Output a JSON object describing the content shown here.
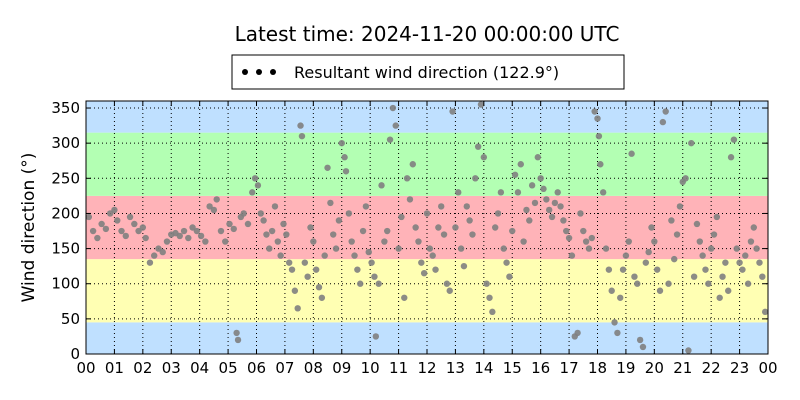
{
  "chart_data": {
    "type": "scatter",
    "title": "Latest time: 2024-11-20 00:00:00 UTC",
    "xlabel": "",
    "ylabel": "Wind direction (°)",
    "xlim": [
      0,
      24
    ],
    "ylim": [
      0,
      360
    ],
    "xticks": [
      "00",
      "01",
      "02",
      "03",
      "04",
      "05",
      "06",
      "07",
      "08",
      "09",
      "10",
      "11",
      "12",
      "13",
      "14",
      "15",
      "16",
      "17",
      "18",
      "19",
      "20",
      "21",
      "22",
      "23",
      "00"
    ],
    "yticks": [
      0,
      50,
      100,
      150,
      200,
      250,
      300,
      350
    ],
    "grid": true,
    "legend_placement": "top-center",
    "legend": [
      "Resultant wind direction (122.9°)"
    ],
    "bands": [
      {
        "from": 0,
        "to": 45,
        "color": "#bfe0ff"
      },
      {
        "from": 45,
        "to": 135,
        "color": "#ffffb3"
      },
      {
        "from": 135,
        "to": 225,
        "color": "#ffb3b8"
      },
      {
        "from": 225,
        "to": 315,
        "color": "#b3ffb3"
      },
      {
        "from": 315,
        "to": 360,
        "color": "#bfe0ff"
      }
    ],
    "series": [
      {
        "name": "Resultant wind direction (122.9°)",
        "color": "#808080",
        "points": [
          [
            0.1,
            195
          ],
          [
            0.25,
            175
          ],
          [
            0.4,
            165
          ],
          [
            0.55,
            185
          ],
          [
            0.7,
            178
          ],
          [
            0.85,
            200
          ],
          [
            1.0,
            205
          ],
          [
            1.1,
            190
          ],
          [
            1.25,
            175
          ],
          [
            1.4,
            168
          ],
          [
            1.55,
            195
          ],
          [
            1.7,
            185
          ],
          [
            1.85,
            175
          ],
          [
            2.0,
            180
          ],
          [
            2.1,
            165
          ],
          [
            2.25,
            130
          ],
          [
            2.4,
            140
          ],
          [
            2.55,
            150
          ],
          [
            2.7,
            145
          ],
          [
            2.85,
            160
          ],
          [
            3.0,
            170
          ],
          [
            3.15,
            172
          ],
          [
            3.3,
            168
          ],
          [
            3.45,
            175
          ],
          [
            3.6,
            165
          ],
          [
            3.75,
            180
          ],
          [
            3.9,
            175
          ],
          [
            4.05,
            168
          ],
          [
            4.2,
            160
          ],
          [
            4.35,
            210
          ],
          [
            4.5,
            205
          ],
          [
            4.6,
            220
          ],
          [
            4.75,
            175
          ],
          [
            4.9,
            160
          ],
          [
            5.05,
            185
          ],
          [
            5.2,
            178
          ],
          [
            5.3,
            30
          ],
          [
            5.35,
            20
          ],
          [
            5.45,
            195
          ],
          [
            5.55,
            200
          ],
          [
            5.7,
            185
          ],
          [
            5.85,
            230
          ],
          [
            5.95,
            250
          ],
          [
            6.05,
            240
          ],
          [
            6.15,
            200
          ],
          [
            6.25,
            190
          ],
          [
            6.35,
            170
          ],
          [
            6.45,
            150
          ],
          [
            6.55,
            175
          ],
          [
            6.65,
            210
          ],
          [
            6.75,
            160
          ],
          [
            6.85,
            140
          ],
          [
            6.95,
            185
          ],
          [
            7.05,
            170
          ],
          [
            7.15,
            130
          ],
          [
            7.25,
            120
          ],
          [
            7.35,
            90
          ],
          [
            7.45,
            65
          ],
          [
            7.55,
            325
          ],
          [
            7.6,
            310
          ],
          [
            7.7,
            130
          ],
          [
            7.8,
            110
          ],
          [
            7.9,
            180
          ],
          [
            8.0,
            160
          ],
          [
            8.1,
            120
          ],
          [
            8.2,
            95
          ],
          [
            8.3,
            80
          ],
          [
            8.4,
            140
          ],
          [
            8.5,
            265
          ],
          [
            8.6,
            215
          ],
          [
            8.7,
            170
          ],
          [
            8.8,
            150
          ],
          [
            8.9,
            190
          ],
          [
            9.0,
            300
          ],
          [
            9.1,
            280
          ],
          [
            9.15,
            260
          ],
          [
            9.25,
            200
          ],
          [
            9.35,
            160
          ],
          [
            9.45,
            140
          ],
          [
            9.55,
            120
          ],
          [
            9.65,
            100
          ],
          [
            9.75,
            175
          ],
          [
            9.85,
            210
          ],
          [
            9.95,
            145
          ],
          [
            10.05,
            130
          ],
          [
            10.15,
            110
          ],
          [
            10.2,
            25
          ],
          [
            10.3,
            100
          ],
          [
            10.4,
            240
          ],
          [
            10.5,
            160
          ],
          [
            10.6,
            175
          ],
          [
            10.7,
            305
          ],
          [
            10.8,
            350
          ],
          [
            10.9,
            325
          ],
          [
            11.0,
            150
          ],
          [
            11.1,
            195
          ],
          [
            11.2,
            80
          ],
          [
            11.3,
            250
          ],
          [
            11.4,
            220
          ],
          [
            11.5,
            270
          ],
          [
            11.6,
            180
          ],
          [
            11.7,
            160
          ],
          [
            11.8,
            130
          ],
          [
            11.9,
            115
          ],
          [
            12.0,
            200
          ],
          [
            12.1,
            150
          ],
          [
            12.2,
            140
          ],
          [
            12.3,
            120
          ],
          [
            12.4,
            180
          ],
          [
            12.5,
            210
          ],
          [
            12.6,
            170
          ],
          [
            12.7,
            100
          ],
          [
            12.8,
            90
          ],
          [
            12.9,
            345
          ],
          [
            13.0,
            180
          ],
          [
            13.1,
            230
          ],
          [
            13.2,
            150
          ],
          [
            13.3,
            125
          ],
          [
            13.4,
            210
          ],
          [
            13.5,
            190
          ],
          [
            13.6,
            170
          ],
          [
            13.7,
            250
          ],
          [
            13.8,
            295
          ],
          [
            13.9,
            355
          ],
          [
            14.0,
            280
          ],
          [
            14.1,
            100
          ],
          [
            14.2,
            80
          ],
          [
            14.3,
            60
          ],
          [
            14.4,
            180
          ],
          [
            14.5,
            200
          ],
          [
            14.6,
            230
          ],
          [
            14.7,
            150
          ],
          [
            14.8,
            130
          ],
          [
            14.9,
            110
          ],
          [
            15.0,
            175
          ],
          [
            15.1,
            255
          ],
          [
            15.2,
            230
          ],
          [
            15.3,
            270
          ],
          [
            15.4,
            160
          ],
          [
            15.5,
            205
          ],
          [
            15.6,
            190
          ],
          [
            15.7,
            240
          ],
          [
            15.8,
            215
          ],
          [
            15.9,
            280
          ],
          [
            16.0,
            250
          ],
          [
            16.1,
            235
          ],
          [
            16.2,
            220
          ],
          [
            16.3,
            205
          ],
          [
            16.4,
            195
          ],
          [
            16.5,
            215
          ],
          [
            16.6,
            230
          ],
          [
            16.7,
            210
          ],
          [
            16.8,
            190
          ],
          [
            16.9,
            175
          ],
          [
            17.0,
            165
          ],
          [
            17.1,
            140
          ],
          [
            17.2,
            25
          ],
          [
            17.3,
            30
          ],
          [
            17.4,
            200
          ],
          [
            17.5,
            175
          ],
          [
            17.6,
            160
          ],
          [
            17.7,
            150
          ],
          [
            17.8,
            165
          ],
          [
            17.9,
            345
          ],
          [
            18.0,
            335
          ],
          [
            18.05,
            310
          ],
          [
            18.1,
            270
          ],
          [
            18.2,
            230
          ],
          [
            18.3,
            150
          ],
          [
            18.4,
            120
          ],
          [
            18.5,
            90
          ],
          [
            18.6,
            45
          ],
          [
            18.7,
            30
          ],
          [
            18.8,
            80
          ],
          [
            18.9,
            120
          ],
          [
            19.0,
            140
          ],
          [
            19.1,
            160
          ],
          [
            19.2,
            285
          ],
          [
            19.3,
            110
          ],
          [
            19.4,
            100
          ],
          [
            19.5,
            20
          ],
          [
            19.6,
            10
          ],
          [
            19.7,
            130
          ],
          [
            19.8,
            145
          ],
          [
            19.9,
            180
          ],
          [
            20.0,
            160
          ],
          [
            20.1,
            120
          ],
          [
            20.2,
            90
          ],
          [
            20.3,
            330
          ],
          [
            20.4,
            345
          ],
          [
            20.5,
            100
          ],
          [
            20.6,
            190
          ],
          [
            20.7,
            135
          ],
          [
            20.8,
            170
          ],
          [
            20.9,
            210
          ],
          [
            21.0,
            245
          ],
          [
            21.1,
            250
          ],
          [
            21.2,
            5
          ],
          [
            21.3,
            300
          ],
          [
            21.4,
            110
          ],
          [
            21.5,
            185
          ],
          [
            21.6,
            160
          ],
          [
            21.7,
            140
          ],
          [
            21.8,
            120
          ],
          [
            21.9,
            100
          ],
          [
            22.0,
            150
          ],
          [
            22.1,
            170
          ],
          [
            22.2,
            195
          ],
          [
            22.3,
            80
          ],
          [
            22.4,
            110
          ],
          [
            22.5,
            130
          ],
          [
            22.6,
            90
          ],
          [
            22.7,
            280
          ],
          [
            22.8,
            305
          ],
          [
            22.9,
            150
          ],
          [
            23.0,
            130
          ],
          [
            23.1,
            120
          ],
          [
            23.2,
            140
          ],
          [
            23.3,
            100
          ],
          [
            23.4,
            160
          ],
          [
            23.5,
            180
          ],
          [
            23.6,
            150
          ],
          [
            23.7,
            130
          ],
          [
            23.8,
            110
          ],
          [
            23.9,
            60
          ]
        ]
      }
    ]
  }
}
